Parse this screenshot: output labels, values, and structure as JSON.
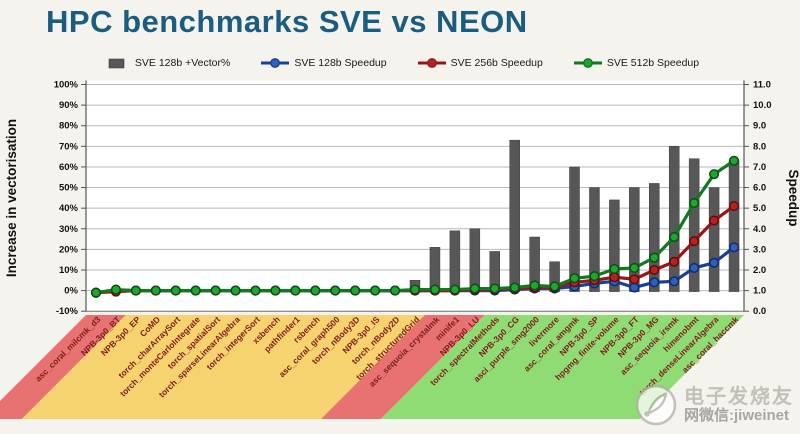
{
  "title": {
    "text": "HPC benchmarks SVE vs NEON",
    "color": "#1b5d80"
  },
  "legend": {
    "position": "top",
    "items": [
      {
        "label": "SVE 128b +Vector%",
        "type": "bar",
        "color": "#575757",
        "marker": "#575757"
      },
      {
        "label": "SVE 128b Speedup",
        "type": "line",
        "color": "#1c3e99",
        "marker": "#2d62b8"
      },
      {
        "label": "SVE 256b Speedup",
        "type": "line",
        "color": "#9a1616",
        "marker": "#b42222"
      },
      {
        "label": "SVE 512b Speedup",
        "type": "line",
        "color": "#0f7a1f",
        "marker": "#22a52e"
      }
    ]
  },
  "chart_data": {
    "type": "bar",
    "subtype": "combo bar + 3 lines, dual axis",
    "grid": true,
    "categories": [
      "asc_coral_milcmk_d3",
      "NPB-3p0_BT",
      "NPB-3p0_EP",
      "CoMD",
      "torch_charArraySort",
      "torch_monteCarloIntegrate",
      "torch_spatialSort",
      "torch_sparseLinearAlgebra",
      "torch_integerSort",
      "xsbench",
      "pathfinder1",
      "rsbench",
      "asc_coral_graph500",
      "torch_nBody3D",
      "NPB-3p0_IS",
      "torch_nBody2D",
      "torch_structuredGrid",
      "asc_sequoia_crystalmk",
      "minife1",
      "NPB-3p0_LU",
      "torch_spectralMethods",
      "NPB-3p0_CG",
      "asci_purple_smg2000",
      "livermore",
      "asc_coral_amgmk",
      "NPB-3p0_SP",
      "hpgmg_finite-volume",
      "NPB-3p0_FT",
      "NPB-3p0_MG",
      "asc_sequoia_irsmk",
      "himenobmt",
      "torch_denseLinearAlgebra",
      "asc_coral_haccmk"
    ],
    "category_label_color": "#7e1d1d",
    "category_bands": [
      {
        "from": 1,
        "to": 2,
        "color": "#e87272"
      },
      {
        "from": 3,
        "to": 17,
        "color": "#f6d36e"
      },
      {
        "from": 18,
        "to": 20,
        "color": "#e87272"
      },
      {
        "from": 21,
        "to": 33,
        "color": "#90dc74"
      }
    ],
    "bar_series": {
      "name": "SVE 128b +Vector%",
      "unit": "%",
      "axis": "left",
      "color": "#575757",
      "values": [
        0,
        0,
        0,
        0,
        0,
        0,
        0,
        0,
        0,
        0,
        0,
        0,
        0,
        0,
        0,
        0,
        5,
        21,
        29,
        30,
        19,
        73,
        26,
        14,
        60,
        50,
        44,
        50,
        52,
        70,
        64,
        50,
        63
      ]
    },
    "line_series": [
      {
        "name": "SVE 128b Speedup",
        "axis": "right",
        "color": "#1c3e99",
        "marker": "#2d62b8",
        "edge": "#0f2c6e",
        "values": [
          0.9,
          1.0,
          1.0,
          1.0,
          1.0,
          1.0,
          1.0,
          1.0,
          1.0,
          1.0,
          1.0,
          1.0,
          1.0,
          1.0,
          1.0,
          1.0,
          1.0,
          1.0,
          1.0,
          1.0,
          1.0,
          1.05,
          1.1,
          1.1,
          1.2,
          1.35,
          1.45,
          1.15,
          1.4,
          1.45,
          2.1,
          2.35,
          3.1
        ]
      },
      {
        "name": "SVE 256b Speedup",
        "axis": "right",
        "color": "#9a1616",
        "marker": "#b42222",
        "edge": "#5e0d0d",
        "values": [
          0.9,
          0.95,
          1.0,
          1.0,
          1.0,
          1.0,
          1.0,
          1.0,
          1.0,
          1.0,
          1.0,
          1.0,
          1.0,
          1.0,
          1.0,
          1.0,
          1.0,
          1.0,
          1.0,
          1.05,
          1.05,
          1.1,
          1.15,
          1.15,
          1.4,
          1.5,
          1.65,
          1.55,
          2.0,
          2.4,
          3.4,
          4.4,
          5.1
        ]
      },
      {
        "name": "SVE 512b Speedup",
        "axis": "right",
        "color": "#0f7a1f",
        "marker": "#22a52e",
        "edge": "#0a4f14",
        "values": [
          0.9,
          1.05,
          1.0,
          1.0,
          1.0,
          1.0,
          1.0,
          1.0,
          1.0,
          1.0,
          1.0,
          1.0,
          1.0,
          1.0,
          1.0,
          1.0,
          1.05,
          1.05,
          1.05,
          1.1,
          1.1,
          1.15,
          1.25,
          1.2,
          1.6,
          1.7,
          2.05,
          2.1,
          2.6,
          3.6,
          5.25,
          6.65,
          7.3
        ]
      }
    ],
    "left_axis": {
      "label": "Increase in vectorisation",
      "min": -10,
      "max": 100,
      "step": 10,
      "ticks": [
        "100%",
        "90%",
        "80%",
        "70%",
        "60%",
        "50%",
        "40%",
        "30%",
        "20%",
        "10%",
        "0%",
        "-10%"
      ]
    },
    "right_axis": {
      "label": "Speedup",
      "min": 0.0,
      "max": 11.0,
      "step": 1.0,
      "ticks": [
        "11.0",
        "10.0",
        "9.0",
        "8.0",
        "7.0",
        "6.0",
        "5.0",
        "4.0",
        "3.0",
        "2.0",
        "1.0",
        "0.0"
      ]
    }
  },
  "watermark": {
    "line1": "电子发烧友",
    "line2": "网微信:jiweinet"
  }
}
